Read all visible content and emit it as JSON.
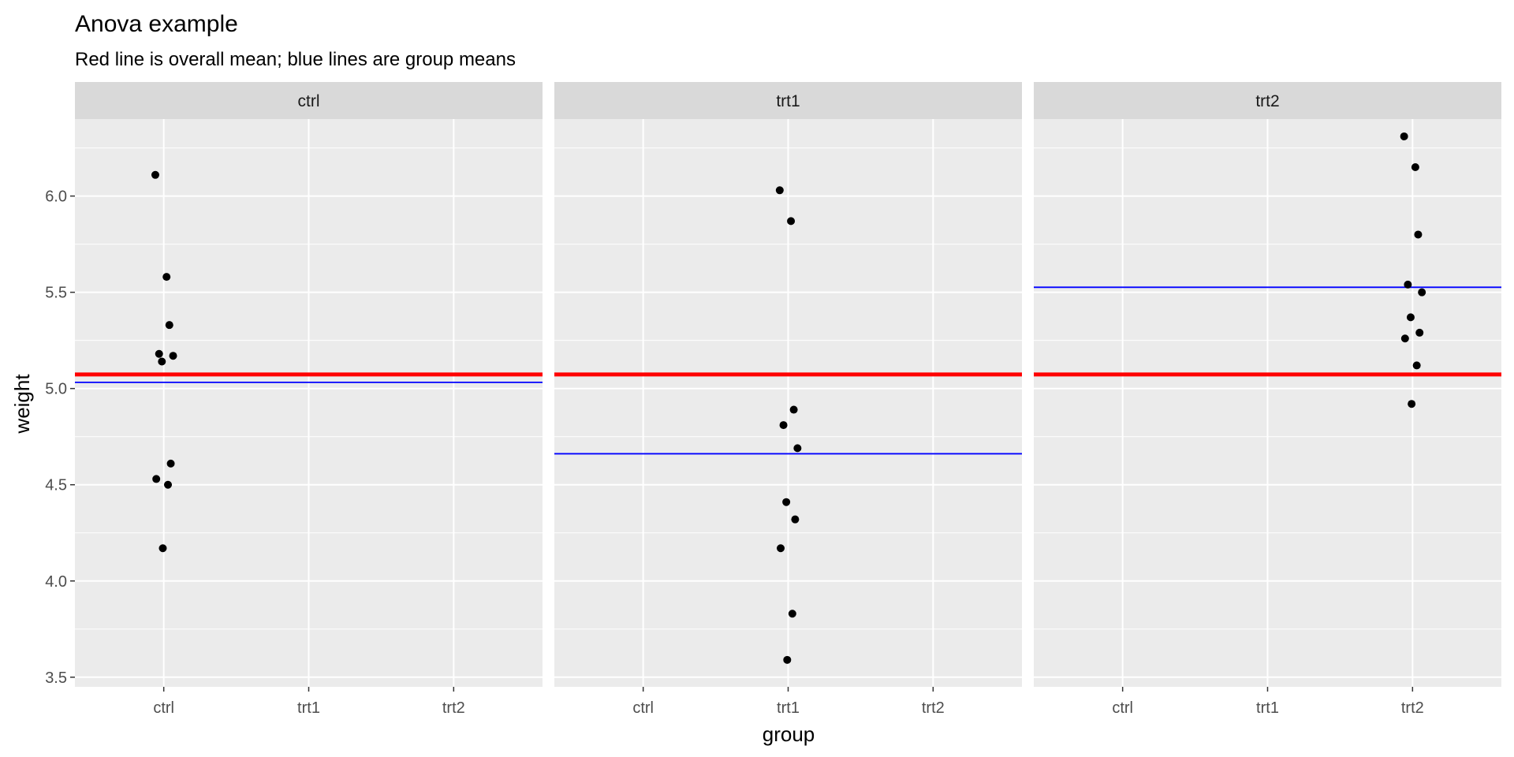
{
  "chart_data": {
    "type": "scatter",
    "title": "Anova example",
    "subtitle": "Red line is overall mean; blue lines are group means",
    "xlabel": "group",
    "ylabel": "weight",
    "categories": [
      "ctrl",
      "trt1",
      "trt2"
    ],
    "ylim": [
      3.45,
      6.4
    ],
    "y_ticks": [
      "3.5",
      "4.0",
      "4.5",
      "5.0",
      "5.5",
      "6.0"
    ],
    "facet_by": "group",
    "grid": true,
    "colors": {
      "points": "#000000",
      "overall_mean_line": "#ff0000",
      "group_mean_line": "#0000ff",
      "panel_background": "#ebebeb",
      "strip_background": "#d9d9d9"
    },
    "overall_mean": 5.073,
    "panels": [
      {
        "label": "ctrl",
        "group_mean": 5.032,
        "points": [
          {
            "x": "ctrl",
            "y": 6.11
          },
          {
            "x": "ctrl",
            "y": 5.58
          },
          {
            "x": "ctrl",
            "y": 5.33
          },
          {
            "x": "ctrl",
            "y": 5.18
          },
          {
            "x": "ctrl",
            "y": 5.17
          },
          {
            "x": "ctrl",
            "y": 5.14
          },
          {
            "x": "ctrl",
            "y": 4.61
          },
          {
            "x": "ctrl",
            "y": 4.53
          },
          {
            "x": "ctrl",
            "y": 4.5
          },
          {
            "x": "ctrl",
            "y": 4.17
          }
        ]
      },
      {
        "label": "trt1",
        "group_mean": 4.661,
        "points": [
          {
            "x": "trt1",
            "y": 6.03
          },
          {
            "x": "trt1",
            "y": 5.87
          },
          {
            "x": "trt1",
            "y": 4.89
          },
          {
            "x": "trt1",
            "y": 4.81
          },
          {
            "x": "trt1",
            "y": 4.69
          },
          {
            "x": "trt1",
            "y": 4.41
          },
          {
            "x": "trt1",
            "y": 4.32
          },
          {
            "x": "trt1",
            "y": 4.17
          },
          {
            "x": "trt1",
            "y": 3.83
          },
          {
            "x": "trt1",
            "y": 3.59
          }
        ]
      },
      {
        "label": "trt2",
        "group_mean": 5.526,
        "points": [
          {
            "x": "trt2",
            "y": 6.31
          },
          {
            "x": "trt2",
            "y": 6.15
          },
          {
            "x": "trt2",
            "y": 5.8
          },
          {
            "x": "trt2",
            "y": 5.54
          },
          {
            "x": "trt2",
            "y": 5.5
          },
          {
            "x": "trt2",
            "y": 5.37
          },
          {
            "x": "trt2",
            "y": 5.29
          },
          {
            "x": "trt2",
            "y": 5.26
          },
          {
            "x": "trt2",
            "y": 5.12
          },
          {
            "x": "trt2",
            "y": 4.92
          }
        ]
      }
    ]
  }
}
